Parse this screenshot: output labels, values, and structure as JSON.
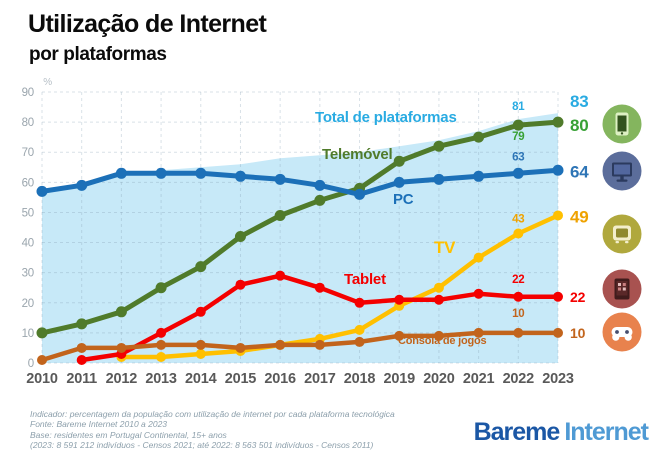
{
  "header": {
    "title": "Utilização de Internet",
    "subtitle": "por plataformas"
  },
  "chart_data": {
    "type": "line",
    "title": "Utilização de Internet por plataformas",
    "ylabel": "%",
    "ylim": [
      0,
      90
    ],
    "ytick_step": 10,
    "grid": true,
    "categories": [
      2010,
      2011,
      2012,
      2013,
      2014,
      2015,
      2016,
      2017,
      2018,
      2019,
      2020,
      2021,
      2022,
      2023
    ],
    "series": [
      {
        "name": "Total de plataformas",
        "style": "area",
        "color": "#29abe2",
        "fill": "#c7e9f8",
        "values": [
          57,
          60,
          63,
          64,
          65,
          66,
          68,
          69,
          70,
          72,
          74,
          77,
          81,
          83
        ]
      },
      {
        "name": "Telemóvel",
        "style": "line",
        "color": "#507b2b",
        "label_color": "#38a135",
        "values": [
          10,
          13,
          17,
          25,
          32,
          42,
          49,
          54,
          58,
          67,
          72,
          75,
          79,
          80
        ]
      },
      {
        "name": "PC",
        "style": "line",
        "color": "#1c70b8",
        "label_color": "#2e75b6",
        "values": [
          57,
          59,
          63,
          63,
          63,
          62,
          61,
          59,
          56,
          60,
          61,
          62,
          63,
          64
        ]
      },
      {
        "name": "TV",
        "style": "line",
        "color": "#ffc000",
        "label_color": "#efa200",
        "values": [
          null,
          null,
          2,
          2,
          3,
          4,
          6,
          8,
          11,
          19,
          25,
          35,
          43,
          49
        ]
      },
      {
        "name": "Tablet",
        "style": "line",
        "color": "#f40000",
        "label_color": "#f40000",
        "values": [
          null,
          1,
          3,
          10,
          17,
          26,
          29,
          25,
          20,
          21,
          21,
          23,
          22,
          22
        ]
      },
      {
        "name": "Consola de jogos",
        "style": "line",
        "color": "#c2641c",
        "label_color": "#c2641c",
        "values": [
          1,
          5,
          5,
          6,
          6,
          5,
          6,
          6,
          7,
          9,
          9,
          10,
          10,
          10
        ]
      }
    ],
    "point_labels": {
      "years": [
        2022,
        2023
      ]
    },
    "legend_position": "inline-labels"
  },
  "icons": [
    {
      "name": "smartphone-icon",
      "bg": "#84b55e"
    },
    {
      "name": "desktop-monitor-icon",
      "bg": "#5b6d9b"
    },
    {
      "name": "tv-icon",
      "bg": "#b0a83d"
    },
    {
      "name": "tablet-icon",
      "bg": "#a85250"
    },
    {
      "name": "gamepad-icon",
      "bg": "#e8824d"
    }
  ],
  "footer": {
    "lines": [
      "Indicador: percentagem da população com utilização de internet por cada plataforma tecnológica",
      "Fonte: Bareme Internet 2010 a 2023",
      "Base: residentes em Portugal Continental, 15+ anos",
      "(2023: 8 591 212 indivíduos - Censos 2021; até 2022: 8 563 501 indivíduos - Censos 2011)"
    ],
    "logo": {
      "part1": "Bareme",
      "part2": "Internet",
      "color1": "#1b57a5",
      "color2": "#4f9ad4"
    }
  }
}
